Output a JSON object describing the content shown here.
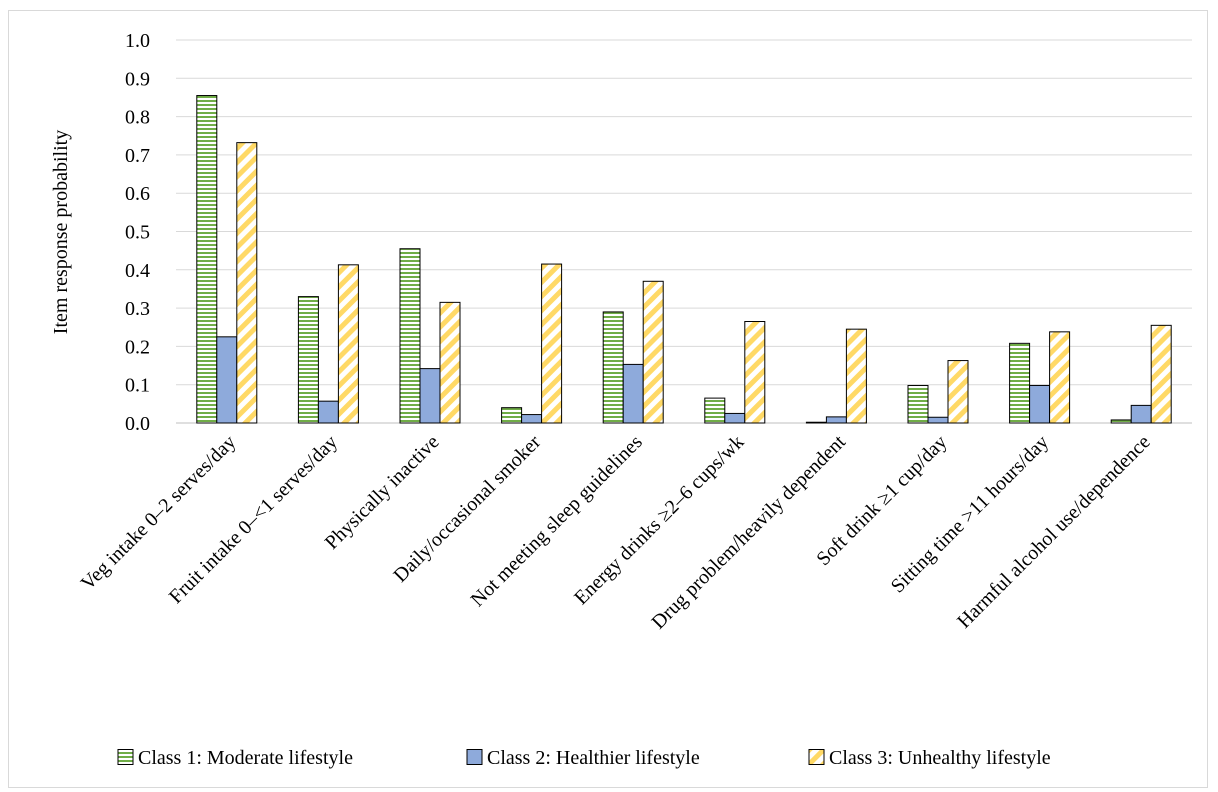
{
  "chart_data": {
    "type": "bar",
    "ylabel": "Item response probability",
    "xlabel": "",
    "ylim": [
      0,
      1.0
    ],
    "yticks": [
      "0.0",
      "0.1",
      "0.2",
      "0.3",
      "0.4",
      "0.5",
      "0.6",
      "0.7",
      "0.8",
      "0.9",
      "1.0"
    ],
    "grid": true,
    "legend_position": "bottom",
    "categories": [
      "Veg intake 0–2 serves/day",
      "Fruit intake 0–<1 serves/day",
      "Physically inactive",
      "Daily/occasional smoker",
      "Not meeting sleep guidelines",
      "Energy drinks ≥2–6 cups/wk",
      "Drug problem/heavily dependent",
      "Soft drink ≥1 cup/day",
      "Sitting time >11 hours/day",
      "Harmful alcohol use/dependence"
    ],
    "series": [
      {
        "name": "Class 1: Moderate lifestyle",
        "values": [
          0.855,
          0.33,
          0.455,
          0.04,
          0.29,
          0.065,
          0.002,
          0.098,
          0.208,
          0.008
        ],
        "color": "#70ad47",
        "pattern": "horizontal-lines"
      },
      {
        "name": "Class 2: Healthier lifestyle",
        "values": [
          0.225,
          0.057,
          0.142,
          0.022,
          0.153,
          0.025,
          0.016,
          0.015,
          0.098,
          0.046
        ],
        "color": "#8eaadb",
        "pattern": "solid"
      },
      {
        "name": "Class 3: Unhealthy lifestyle",
        "values": [
          0.732,
          0.413,
          0.315,
          0.415,
          0.37,
          0.265,
          0.245,
          0.163,
          0.238,
          0.255
        ],
        "color": "#ffd966",
        "pattern": "diagonal-stripes"
      }
    ]
  }
}
